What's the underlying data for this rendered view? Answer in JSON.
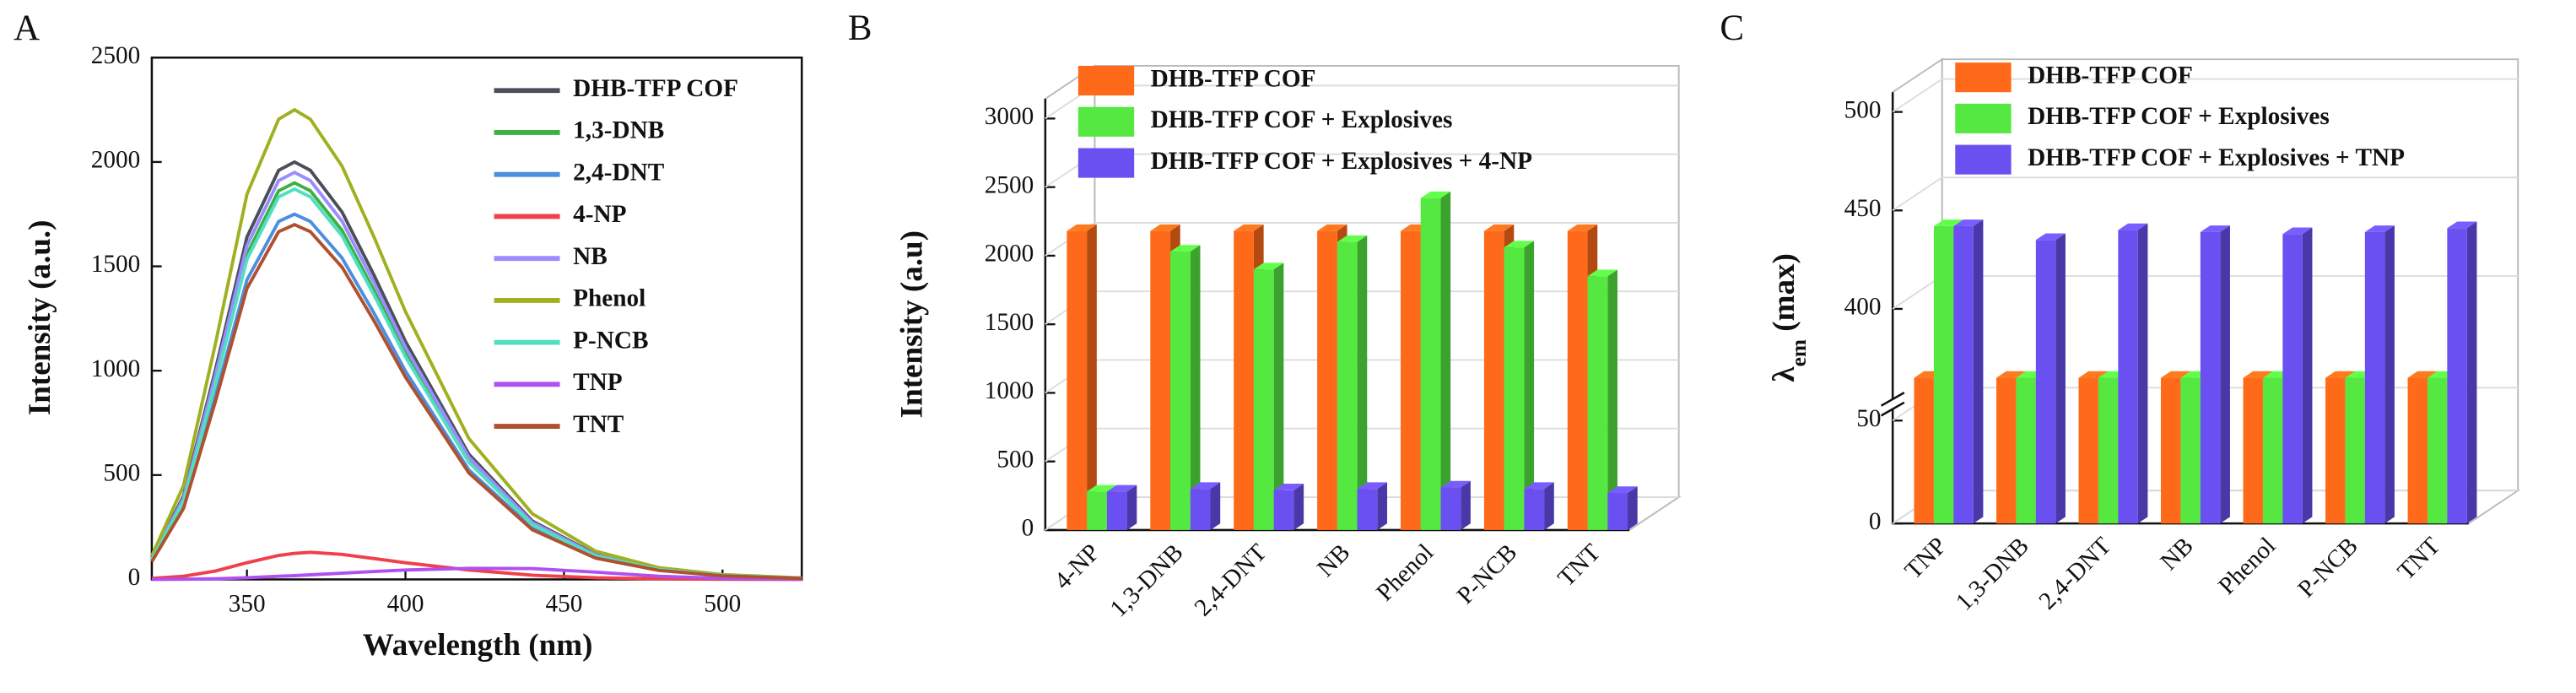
{
  "chart_data": [
    {
      "type": "line",
      "panel": "A",
      "xlabel": "Wavelength (nm)",
      "ylabel": "Intensity (a.u.)",
      "x": [
        320,
        330,
        340,
        350,
        360,
        365,
        370,
        380,
        390,
        400,
        420,
        440,
        460,
        480,
        500,
        525
      ],
      "xlim": [
        320,
        525
      ],
      "xticks": [
        350,
        400,
        450,
        500
      ],
      "ylim": [
        0,
        2500
      ],
      "yticks": [
        0,
        500,
        1000,
        1500,
        2000,
        2500
      ],
      "series": [
        {
          "name": "DHB-TFP COF",
          "color": "#4a4f5a",
          "values": [
            100,
            400,
            1000,
            1640,
            1960,
            2000,
            1960,
            1760,
            1460,
            1140,
            600,
            280,
            120,
            50,
            20,
            6
          ]
        },
        {
          "name": "1,3-DNB",
          "color": "#3cb043",
          "values": [
            95,
            380,
            950,
            1558,
            1862,
            1900,
            1862,
            1672,
            1387,
            1083,
            570,
            266,
            114,
            48,
            19,
            6
          ]
        },
        {
          "name": "2,4-DNT",
          "color": "#4a8fe0",
          "values": [
            88,
            350,
            875,
            1435,
            1715,
            1750,
            1715,
            1540,
            1278,
            998,
            525,
            245,
            105,
            44,
            18,
            5
          ]
        },
        {
          "name": "4-NP",
          "color": "#f0404a",
          "values": [
            5,
            15,
            40,
            80,
            115,
            125,
            130,
            120,
            100,
            80,
            45,
            20,
            8,
            3,
            1,
            0
          ]
        },
        {
          "name": "NB",
          "color": "#9b8cff",
          "values": [
            98,
            390,
            975,
            1599,
            1911,
            1950,
            1911,
            1716,
            1424,
            1112,
            585,
            273,
            117,
            49,
            20,
            6
          ]
        },
        {
          "name": "Phenol",
          "color": "#a0b020",
          "values": [
            113,
            450,
            1125,
            1845,
            2205,
            2250,
            2205,
            1980,
            1643,
            1283,
            675,
            315,
            135,
            56,
            23,
            7
          ]
        },
        {
          "name": "P-NCB",
          "color": "#50e0c0",
          "values": [
            94,
            374,
            935,
            1533,
            1833,
            1870,
            1833,
            1646,
            1365,
            1066,
            561,
            262,
            112,
            47,
            19,
            6
          ]
        },
        {
          "name": "TNP",
          "color": "#b050f0",
          "values": [
            0,
            1,
            3,
            8,
            15,
            18,
            22,
            30,
            38,
            45,
            53,
            52,
            35,
            15,
            5,
            1
          ]
        },
        {
          "name": "TNT",
          "color": "#b05030",
          "values": [
            85,
            340,
            850,
            1394,
            1666,
            1700,
            1666,
            1496,
            1241,
            969,
            510,
            238,
            102,
            43,
            17,
            5
          ]
        }
      ]
    },
    {
      "type": "bar",
      "panel": "B",
      "ylabel": "Intensity (a.u)",
      "categories": [
        "4-NP",
        "1,3-DNB",
        "2,4-DNT",
        "NB",
        "Phenol",
        "P-NCB",
        "TNT"
      ],
      "ylim": [
        0,
        3000
      ],
      "yticks": [
        0,
        500,
        1000,
        1500,
        2000,
        2500,
        3000
      ],
      "grid": true,
      "series": [
        {
          "name": "DHB-TFP COF",
          "color": "#ff6a1a",
          "values": [
            2180,
            2180,
            2180,
            2180,
            2180,
            2180,
            2180
          ]
        },
        {
          "name": "DHB-TFP COF + Explosives",
          "color": "#55e840",
          "values": [
            280,
            2030,
            1900,
            2100,
            2420,
            2060,
            1850
          ]
        },
        {
          "name": "DHB-TFP COF + Explosives + 4-NP",
          "color": "#6a50f0",
          "values": [
            280,
            300,
            290,
            300,
            310,
            300,
            270
          ]
        }
      ]
    },
    {
      "type": "bar",
      "panel": "C",
      "ylabel": [
        "λ",
        "em",
        " (max)"
      ],
      "categories": [
        "TNP",
        "1,3-DNB",
        "2,4-DNT",
        "NB",
        "Phenol",
        "P-NCB",
        "TNT"
      ],
      "ylim": [
        0,
        500
      ],
      "axis_break": [
        50,
        360
      ],
      "yticks": [
        0,
        50,
        400,
        450,
        500
      ],
      "grid": true,
      "series": [
        {
          "name": "DHB-TFP COF",
          "color": "#ff6a1a",
          "values": [
            365,
            365,
            365,
            365,
            365,
            365,
            365
          ]
        },
        {
          "name": "DHB-TFP COF + Explosives",
          "color": "#55e840",
          "values": [
            442,
            365,
            365,
            365,
            365,
            365,
            365
          ]
        },
        {
          "name": "DHB-TFP COF + Explosives + TNP",
          "color": "#6a50f0",
          "values": [
            442,
            435,
            440,
            439,
            438,
            439,
            441
          ]
        }
      ]
    }
  ]
}
